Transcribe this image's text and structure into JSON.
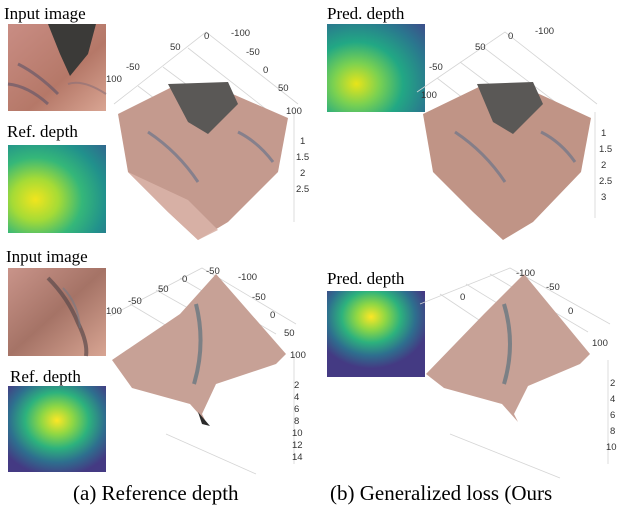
{
  "labels": {
    "input_image": "Input image",
    "ref_depth": "Ref. depth",
    "pred_depth": "Pred. depth"
  },
  "captions": {
    "a": "(a) Reference depth",
    "b": "(b) Generalized loss (Ours"
  },
  "axes": {
    "top_a": {
      "xy_ticks_top": [
        "100",
        "50",
        "0",
        "-50",
        "-100"
      ],
      "xy_ticks_side": [
        "-50",
        "0",
        "50",
        "100"
      ],
      "left": [
        "100",
        "-50"
      ],
      "z": [
        "1",
        "1.5",
        "2",
        "2.5"
      ]
    },
    "top_b": {
      "xy_ticks_top": [
        "-100",
        "-50",
        "0",
        "50",
        "100"
      ],
      "left": [
        "-50"
      ],
      "left2": [
        "100"
      ],
      "z": [
        "1",
        "1.5",
        "2",
        "2.5",
        "3"
      ]
    },
    "bot_a": {
      "xy_ticks_top": [
        "0",
        "-50",
        "-100"
      ],
      "left": [
        "100",
        "-50",
        "50",
        "100"
      ],
      "side": [
        "-100",
        "-50",
        "0",
        "50",
        "100"
      ],
      "z": [
        "2",
        "4",
        "6",
        "8",
        "10",
        "12",
        "14"
      ]
    },
    "bot_b": {
      "xy_ticks_top": [
        "-100",
        "-50"
      ],
      "left": [
        "0"
      ],
      "side": [
        "0",
        "100"
      ],
      "z": [
        "2",
        "4",
        "6",
        "8",
        "10"
      ]
    }
  }
}
